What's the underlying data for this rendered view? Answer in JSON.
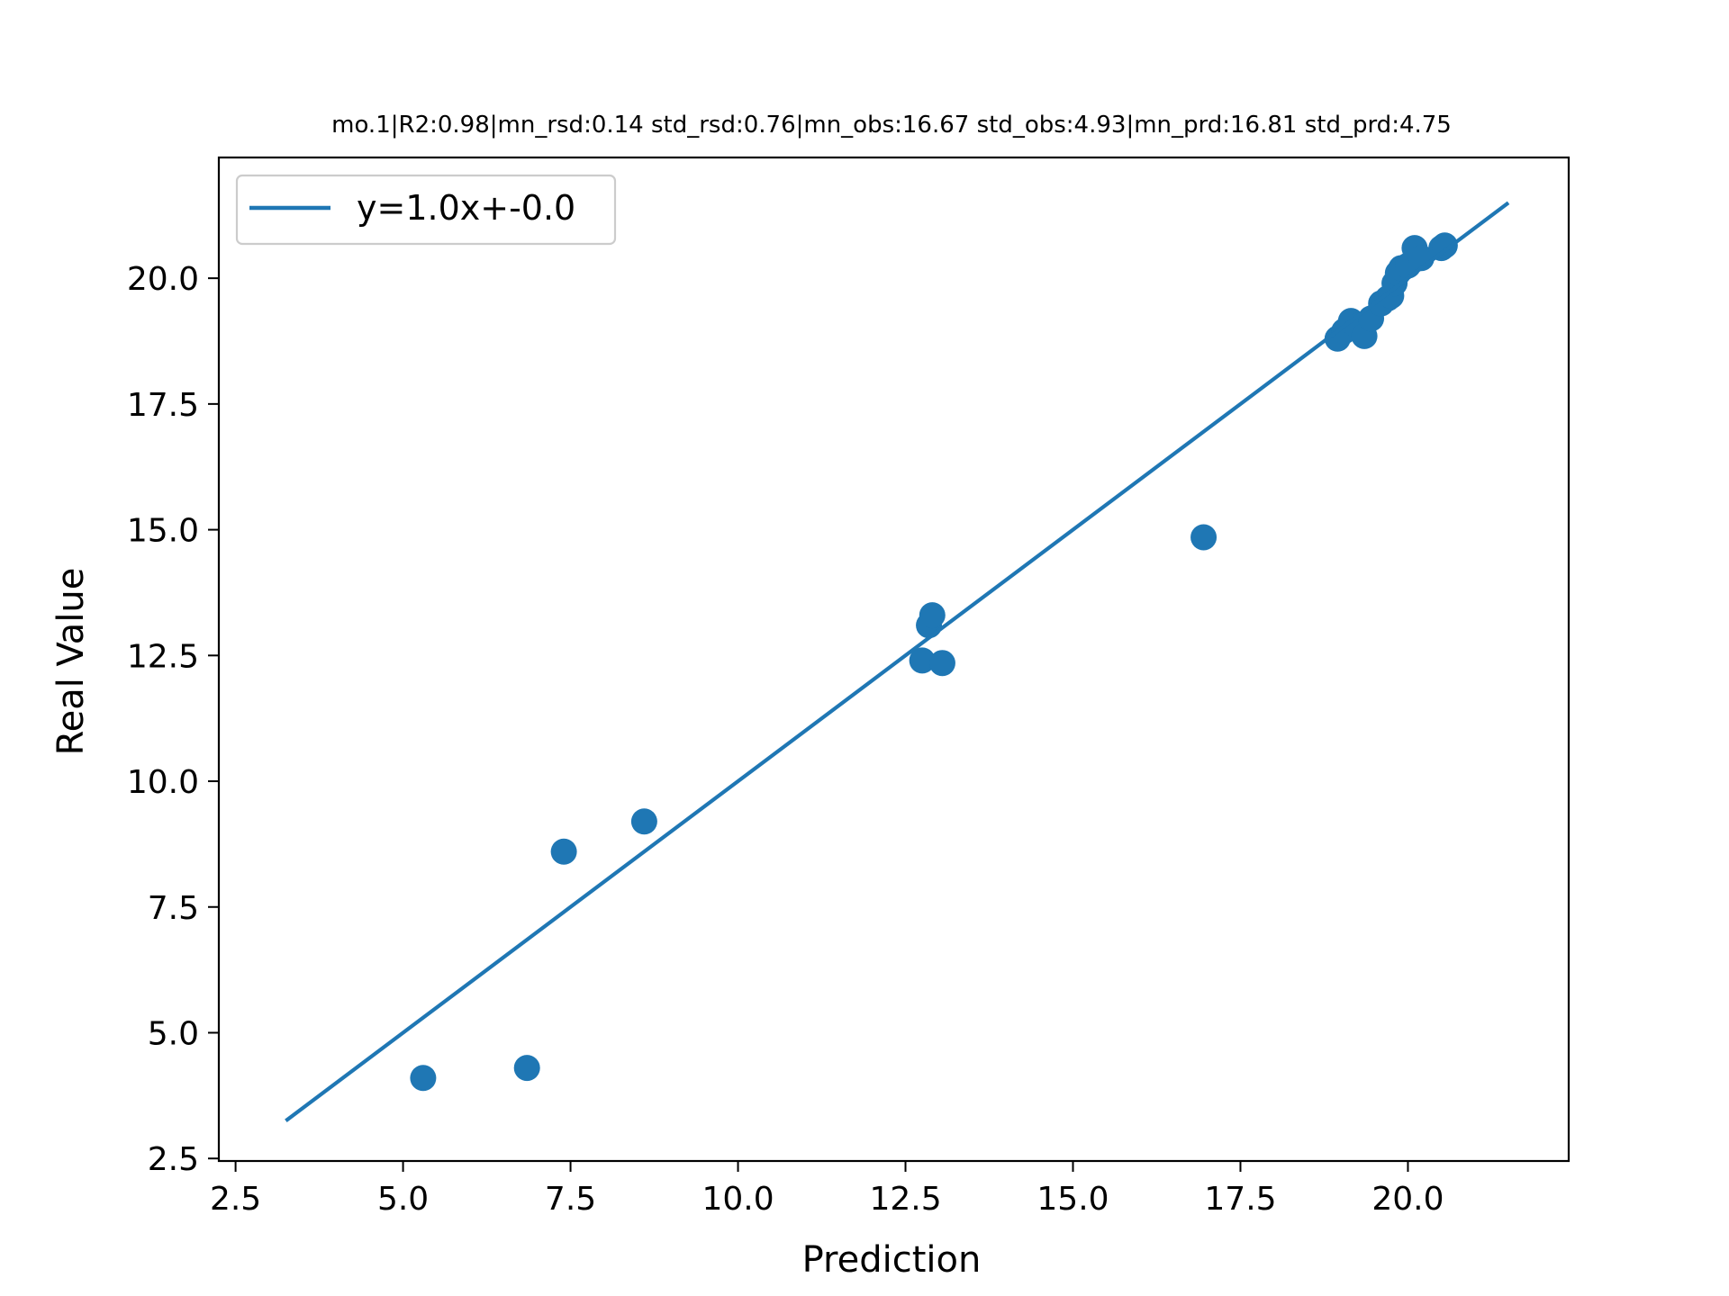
{
  "chart_data": {
    "type": "scatter",
    "title": "mo.1|R2:0.98|mn_rsd:0.14 std_rsd:0.76|mn_obs:16.67 std_obs:4.93|mn_prd:16.81 std_prd:4.75",
    "xlabel": "Prediction",
    "ylabel": "Real Value",
    "xlim": [
      2.25,
      22.4
    ],
    "ylim": [
      2.45,
      22.4
    ],
    "x_ticks": [
      2.5,
      5.0,
      7.5,
      10.0,
      12.5,
      15.0,
      17.5,
      20.0
    ],
    "x_tick_labels": [
      "2.5",
      "5.0",
      "7.5",
      "10.0",
      "12.5",
      "15.0",
      "17.5",
      "20.0"
    ],
    "y_ticks": [
      2.5,
      5.0,
      7.5,
      10.0,
      12.5,
      15.0,
      17.5,
      20.0
    ],
    "y_tick_labels": [
      "2.5",
      "5.0",
      "7.5",
      "10.0",
      "12.5",
      "15.0",
      "17.5",
      "20.0"
    ],
    "grid": false,
    "legend_position": "upper-left",
    "color": "#1f77b4",
    "fit_line": {
      "name": "y=1.0x+-0.0",
      "x": [
        3.25,
        21.5
      ],
      "y": [
        3.25,
        21.5
      ]
    },
    "points": {
      "x": [
        5.3,
        6.85,
        7.4,
        8.6,
        12.75,
        12.85,
        12.9,
        13.05,
        16.95,
        18.95,
        19.05,
        19.15,
        19.25,
        19.35,
        19.45,
        19.6,
        19.7,
        19.75,
        19.8,
        19.85,
        19.9,
        20.0,
        20.1,
        20.2,
        20.5,
        20.55
      ],
      "y": [
        4.1,
        4.3,
        8.6,
        9.2,
        12.4,
        13.1,
        13.3,
        12.35,
        14.85,
        18.8,
        18.95,
        19.15,
        19.05,
        18.85,
        19.2,
        19.5,
        19.6,
        19.65,
        19.9,
        20.1,
        20.2,
        20.25,
        20.6,
        20.4,
        20.6,
        20.65
      ]
    }
  }
}
